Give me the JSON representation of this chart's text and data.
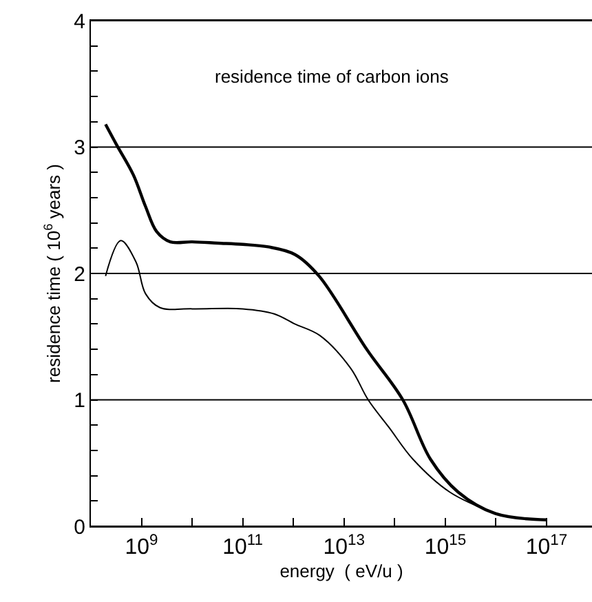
{
  "chart_data": {
    "type": "line",
    "title": "residence time of carbon ions",
    "xlabel": "energy  ( eV/u )",
    "ylabel": "residence time ( 10$^{6}$ years )",
    "log": "x",
    "grid": "y",
    "marker": "none",
    "line_style": "solid",
    "xlim": [
      100000000.0,
      7.9e+17
    ],
    "ylim": [
      0,
      4
    ],
    "xticks": [
      {
        "value": 1000000000.0,
        "label": "10$^{9}$"
      },
      {
        "value": 10000000000.0,
        "label": null
      },
      {
        "value": 100000000000.0,
        "label": "10$^{11}$"
      },
      {
        "value": 1000000000000.0,
        "label": null
      },
      {
        "value": 10000000000000.0,
        "label": "10$^{13}$"
      },
      {
        "value": 100000000000000.0,
        "label": null
      },
      {
        "value": 1000000000000000.0,
        "label": "10$^{15}$"
      },
      {
        "value": 1e+16,
        "label": null
      },
      {
        "value": 1e+17,
        "label": "10$^{17}$"
      }
    ],
    "yticks": [
      0,
      {
        "value": 0.2,
        "label": null
      },
      {
        "value": 0.4,
        "label": null
      },
      {
        "value": 0.6,
        "label": null
      },
      {
        "value": 0.8,
        "label": null
      },
      1,
      {
        "value": 1.2,
        "label": null
      },
      {
        "value": 1.4,
        "label": null
      },
      {
        "value": 1.6,
        "label": null
      },
      {
        "value": 1.8,
        "label": null
      },
      2,
      {
        "value": 2.2,
        "label": null
      },
      {
        "value": 2.4,
        "label": null
      },
      {
        "value": 2.6,
        "label": null
      },
      {
        "value": 2.8,
        "label": null
      },
      3,
      {
        "value": 3.2,
        "label": null
      },
      {
        "value": 3.4,
        "label": null
      },
      {
        "value": 3.6,
        "label": null
      },
      {
        "value": 3.8,
        "label": null
      },
      4
    ],
    "series": [
      {
        "color": "#000000",
        "x": [
          195000000.0,
          320000000.0,
          690000000.0,
          1200000000.0,
          2000000000.0,
          3700000000.0,
          10000000000.0,
          32000000000.0,
          100000000000.0,
          320000000000.0,
          1070000000000.0,
          3200000000000.0,
          28000000000000.0,
          145000000000000.0,
          510000000000000.0,
          1800000000000000.0,
          9800000000000000.0,
          1e+17
        ],
        "values": [
          3.18,
          3.02,
          2.78,
          2.53,
          2.33,
          2.25,
          2.25,
          2.24,
          2.23,
          2.21,
          2.15,
          1.98,
          1.4,
          1.0,
          0.53,
          0.27,
          0.1,
          0.05
        ]
      },
      {
        "color": "#000000",
        "x": [
          195000000.0,
          390000000.0,
          780000000.0,
          1200000000.0,
          2300000000.0,
          10000000000.0,
          100000000000.0,
          420000000000.0,
          1070000000000.0,
          3300000000000.0,
          13500000000000.0,
          30000000000000.0,
          78000000000000.0,
          230000000000000.0,
          1230000000000000.0,
          9800000000000000.0
        ],
        "values": [
          1.98,
          2.26,
          2.09,
          1.84,
          1.73,
          1.72,
          1.72,
          1.68,
          1.6,
          1.51,
          1.25,
          1.0,
          0.78,
          0.53,
          0.27,
          0.1
        ]
      }
    ]
  }
}
